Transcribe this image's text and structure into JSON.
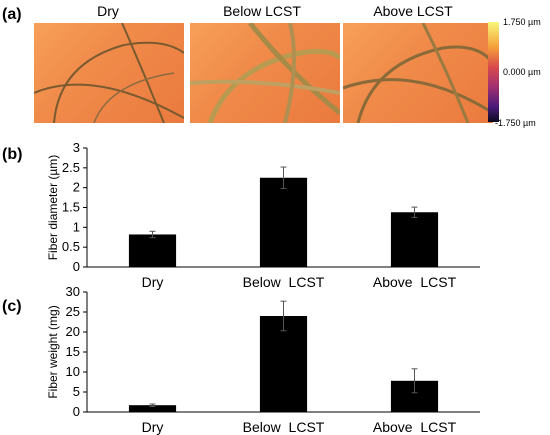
{
  "panels": {
    "a": "(a)",
    "b": "(b)",
    "c": "(c)"
  },
  "images": {
    "titles": [
      "Dry",
      "Below  LCST",
      "Above  LCST"
    ],
    "colorbar": {
      "max": "1.750 µm",
      "mid": "0.000 µm",
      "min": "-1.750 µm"
    }
  },
  "chart_data": [
    {
      "type": "bar",
      "categories": [
        "Dry",
        "Below  LCST",
        "Above  LCST"
      ],
      "values": [
        0.82,
        2.25,
        1.38
      ],
      "errors": [
        0.08,
        0.27,
        0.13
      ],
      "title": "",
      "xlabel": "",
      "ylabel": "Fiber diameter (µm)",
      "ylim": [
        0,
        3
      ],
      "yticks": [
        "0",
        "0.5",
        "1",
        "1.5",
        "2",
        "2.5",
        "3"
      ],
      "ytick_values": [
        0,
        0.5,
        1,
        1.5,
        2,
        2.5,
        3
      ],
      "bar_color": "#000000",
      "grid": false
    },
    {
      "type": "bar",
      "categories": [
        "Dry",
        "Below  LCST",
        "Above  LCST"
      ],
      "values": [
        1.7,
        24.0,
        7.8
      ],
      "errors": [
        0.3,
        3.7,
        3.0
      ],
      "title": "",
      "xlabel": "",
      "ylabel": "Fiber weight (mg)",
      "ylim": [
        0,
        30
      ],
      "yticks": [
        "0",
        "5",
        "10",
        "15",
        "20",
        "25",
        "30"
      ],
      "ytick_values": [
        0,
        5,
        10,
        15,
        20,
        25,
        30
      ],
      "bar_color": "#000000",
      "grid": false
    }
  ]
}
